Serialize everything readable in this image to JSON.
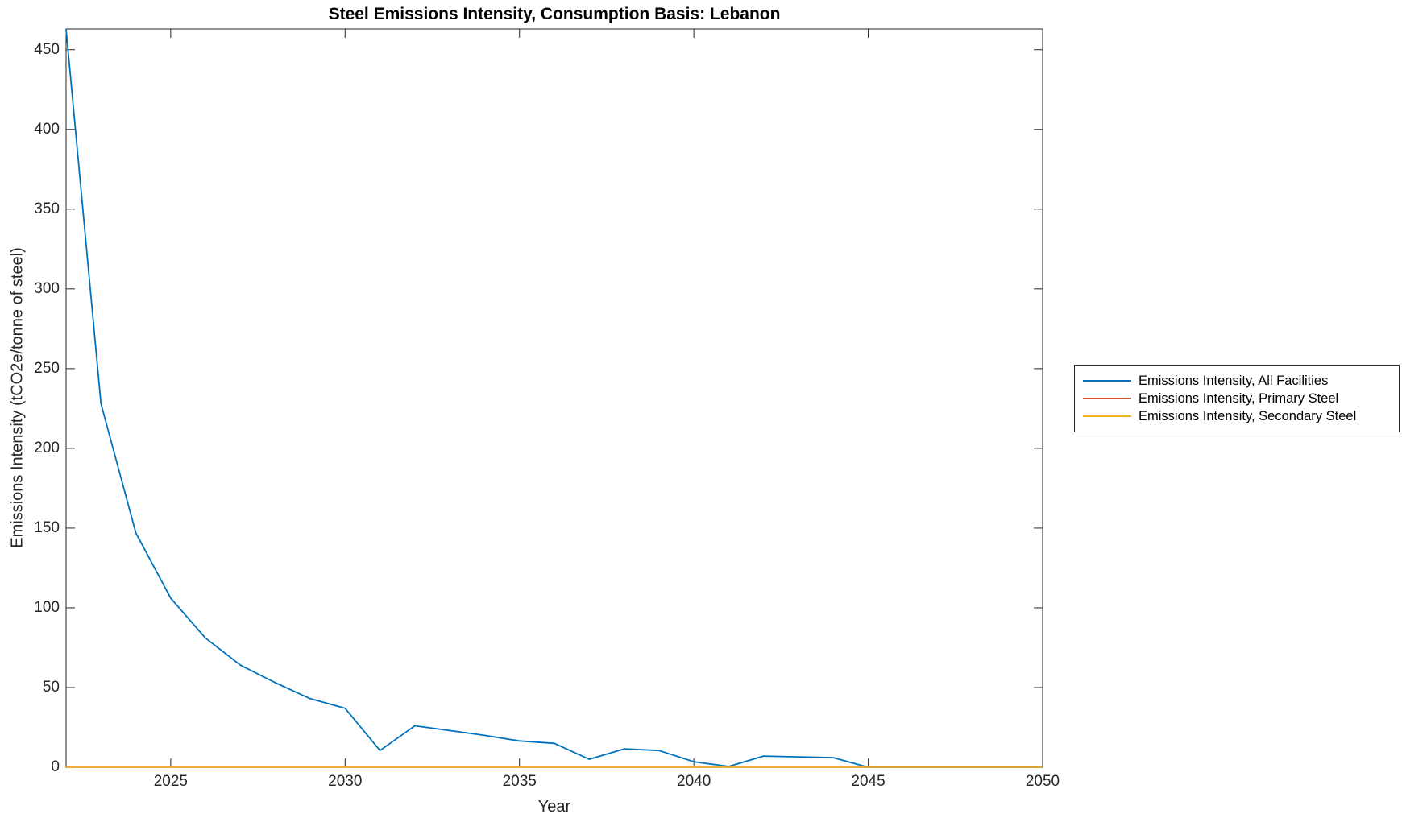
{
  "title": "Steel Emissions Intensity, Consumption Basis: Lebanon",
  "xlabel": "Year",
  "ylabel": "Emissions Intensity (tCO2e/tonne of steel)",
  "chart_data": {
    "type": "line",
    "title": "Steel Emissions Intensity, Consumption Basis: Lebanon",
    "xlabel": "Year",
    "ylabel": "Emissions Intensity (tCO2e/tonne of steel)",
    "xlim": [
      2022,
      2050
    ],
    "ylim": [
      0,
      463
    ],
    "xticks": [
      2025,
      2030,
      2035,
      2040,
      2045,
      2050
    ],
    "yticks": [
      0,
      50,
      100,
      150,
      200,
      250,
      300,
      350,
      400,
      450
    ],
    "grid": false,
    "legend_position": "right-outside",
    "x": [
      2022,
      2023,
      2024,
      2025,
      2026,
      2027,
      2028,
      2029,
      2030,
      2031,
      2032,
      2033,
      2034,
      2035,
      2036,
      2037,
      2038,
      2039,
      2040,
      2041,
      2042,
      2043,
      2044,
      2045,
      2046,
      2047,
      2048,
      2049,
      2050
    ],
    "series": [
      {
        "name": "Emissions Intensity, All Facilities",
        "color": "#0072BD",
        "values": [
          463,
          228,
          147,
          106,
          81,
          64,
          53,
          43,
          37,
          10.5,
          26,
          23,
          20,
          16.5,
          15,
          5,
          11.5,
          10.5,
          3.5,
          0.5,
          7,
          6.5,
          6,
          0,
          0,
          0,
          0,
          0,
          0
        ]
      },
      {
        "name": "Emissions Intensity, Primary Steel",
        "color": "#D95319",
        "values": [
          0,
          0,
          0,
          0,
          0,
          0,
          0,
          0,
          0,
          0,
          0,
          0,
          0,
          0,
          0,
          0,
          0,
          0,
          0,
          0,
          0,
          0,
          0,
          0,
          0,
          0,
          0,
          0,
          0
        ]
      },
      {
        "name": "Emissions Intensity, Secondary Steel",
        "color": "#EDB120",
        "values": [
          0,
          0,
          0,
          0,
          0,
          0,
          0,
          0,
          0,
          0,
          0,
          0,
          0,
          0,
          0,
          0,
          0,
          0,
          0,
          0,
          0,
          0,
          0,
          0,
          0,
          0,
          0,
          0,
          0
        ]
      }
    ]
  }
}
